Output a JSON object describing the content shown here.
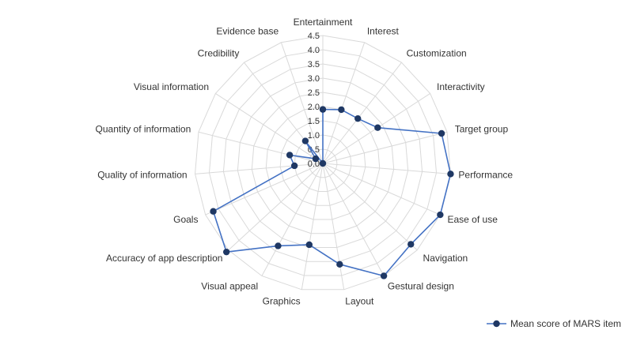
{
  "chart_data": {
    "type": "radar",
    "title": "",
    "categories": [
      "Entertainment",
      "Interest",
      "Customization",
      "Interactivity",
      "Target group",
      "Performance",
      "Ease of use",
      "Navigation",
      "Gestural design",
      "Layout",
      "Graphics",
      "Visual appeal",
      "Accuracy of app description",
      "Goals",
      "Quality of information",
      "Quantity of information",
      "Visual information",
      "Credibility",
      "Evidence base"
    ],
    "series": [
      {
        "name": "Mean score of MARS item",
        "values": [
          1.9,
          2.0,
          2.0,
          2.3,
          4.3,
          4.5,
          4.5,
          4.2,
          4.5,
          3.6,
          2.9,
          3.3,
          4.6,
          4.2,
          1.0,
          1.2,
          0.3,
          1.0,
          0.0
        ],
        "color": "#4472c4",
        "marker_color": "#1f3864"
      }
    ],
    "r_range": [
      0,
      4.5
    ],
    "r_ticks": [
      "0.0",
      "0.5",
      "1.0",
      "1.5",
      "2.0",
      "2.5",
      "3.0",
      "3.5",
      "4.0",
      "4.5"
    ],
    "grid": true,
    "grid_color": "#d9d9d9",
    "legend_position": "bottom-right"
  }
}
